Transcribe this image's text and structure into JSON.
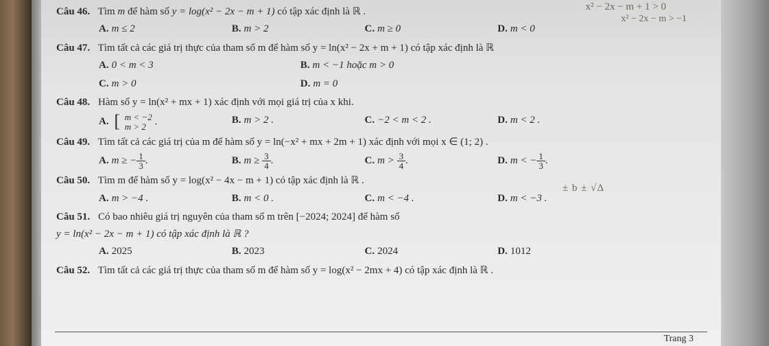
{
  "handwriting": {
    "line1": "x² − 2x − m + 1 > 0",
    "line2": "x² − 2x − m > −1",
    "mid": "± b   ± √Δ"
  },
  "questions": [
    {
      "id": "46",
      "label": "Câu 46.",
      "stem_pre": "Tìm ",
      "stem_var": "m",
      "stem_mid": " để hàm số ",
      "stem_fn": "y = log(x² − 2x − m + 1)",
      "stem_post": " có tập xác định là ℝ .",
      "options": [
        {
          "k": "A.",
          "t": "m ≤ 2"
        },
        {
          "k": "B.",
          "t": "m > 2"
        },
        {
          "k": "C.",
          "t": "m ≥ 0"
        },
        {
          "k": "D.",
          "t": "m < 0"
        }
      ]
    },
    {
      "id": "47",
      "label": "Câu 47.",
      "stem": "Tìm tất cả các giá trị thực của tham số m để hàm số y = ln(x² − 2x + m + 1) có tập xác định là ℝ",
      "options_row1": [
        {
          "k": "A.",
          "t": "0 < m < 3"
        },
        {
          "k": "B.",
          "t": "m < −1 hoặc m > 0"
        }
      ],
      "options_row2": [
        {
          "k": "C.",
          "t": "m > 0"
        },
        {
          "k": "D.",
          "t": "m = 0"
        }
      ]
    },
    {
      "id": "48",
      "label": "Câu 48.",
      "stem": "Hàm số y = ln(x² + mx + 1) xác định với mọi giá trị của x khi.",
      "optionA_top": "m < −2",
      "optionA_bot": "m > 2",
      "options_rest": [
        {
          "k": "B.",
          "t": "m > 2 ."
        },
        {
          "k": "C.",
          "t": "−2 < m < 2 ."
        },
        {
          "k": "D.",
          "t": "m < 2 ."
        }
      ]
    },
    {
      "id": "49",
      "label": "Câu 49.",
      "stem": "Tìm tất cả các giá trị của m để hàm số y = ln(−x² + mx + 2m + 1) xác định với mọi x ∈ (1; 2) .",
      "options": [
        {
          "k": "A.",
          "pre": "m ≥ −",
          "num": "1",
          "den": "3",
          "post": "."
        },
        {
          "k": "B.",
          "pre": "m ≥ ",
          "num": "3",
          "den": "4",
          "post": "."
        },
        {
          "k": "C.",
          "pre": "m > ",
          "num": "3",
          "den": "4",
          "post": "."
        },
        {
          "k": "D.",
          "pre": "m < −",
          "num": "1",
          "den": "3",
          "post": "."
        }
      ]
    },
    {
      "id": "50",
      "label": "Câu 50.",
      "stem": "Tìm m để hàm số y = log(x² − 4x − m + 1) có tập xác định là ℝ .",
      "options": [
        {
          "k": "A.",
          "t": "m > −4 ."
        },
        {
          "k": "B.",
          "t": "m < 0 ."
        },
        {
          "k": "C.",
          "t": "m < −4 ."
        },
        {
          "k": "D.",
          "t": "m < −3 ."
        }
      ]
    },
    {
      "id": "51",
      "label": "Câu 51.",
      "stem_line1": "Có bao nhiêu giá trị nguyên của tham số m trên [−2024; 2024] để hàm số",
      "stem_line2": "y = ln(x² − 2x − m + 1) có tập xác định là ℝ ?",
      "options": [
        {
          "k": "A.",
          "t": "2025"
        },
        {
          "k": "B.",
          "t": "2023"
        },
        {
          "k": "C.",
          "t": "2024"
        },
        {
          "k": "D.",
          "t": "1012"
        }
      ]
    },
    {
      "id": "52",
      "label": "Câu 52.",
      "stem": "Tìm tất cả các giá trị thực của tham số m để hàm số y = log(x² − 2mx + 4) có tập xác định là ℝ ."
    }
  ],
  "footer": "Trang 3"
}
